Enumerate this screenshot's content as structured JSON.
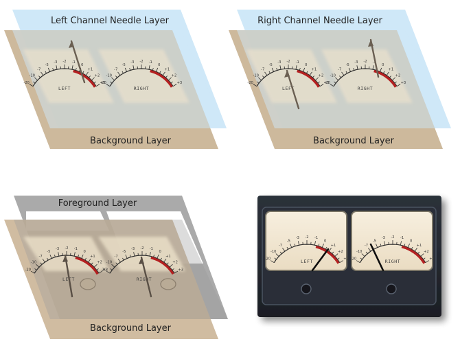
{
  "panels": {
    "top_left": {
      "top_label": "Left Channel Needle Layer",
      "bottom_label": "Background Layer"
    },
    "top_right": {
      "top_label": "Right Channel Needle Layer",
      "bottom_label": "Background Layer"
    },
    "bottom_left": {
      "top_label": "Foreground Layer",
      "bottom_label": "Background Layer"
    }
  },
  "meter": {
    "scale_labels": [
      "-20",
      "-10",
      "-7",
      "-5",
      "-3",
      "-2",
      "-1",
      "0",
      "+1",
      "+2",
      "+3"
    ],
    "left_name": "LEFT",
    "right_name": "RIGHT"
  },
  "colors": {
    "needle_layer": "#cfe8f8",
    "background_layer": "#c9b394",
    "foreground_layer": "#a5a5a5",
    "meter_face": "#f3e9d6",
    "red_zone": "#b42020",
    "device_body": "#232730"
  }
}
